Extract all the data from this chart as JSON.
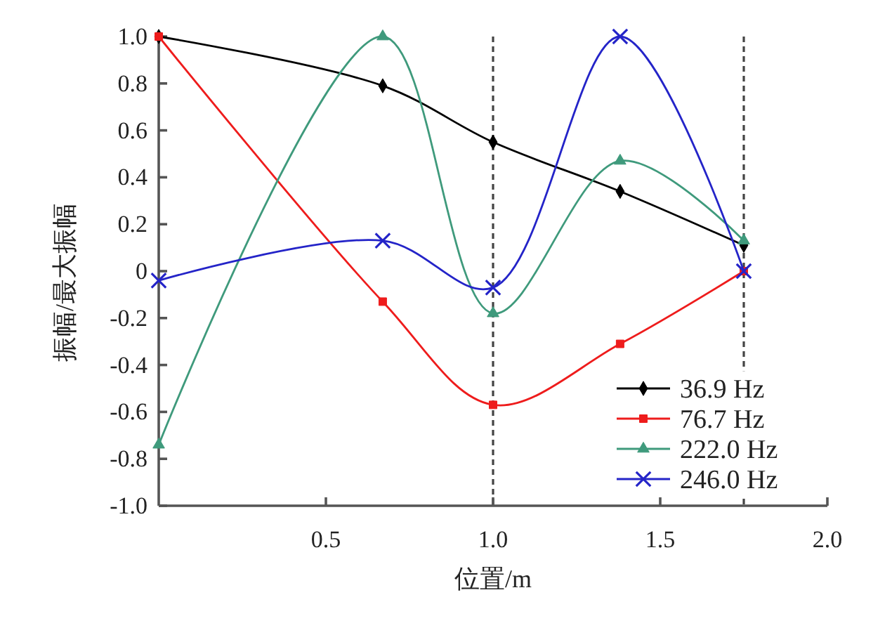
{
  "chart_data": {
    "type": "line",
    "xlabel": "位置/m",
    "ylabel": "振幅/最大振幅",
    "x": [
      0,
      0.67,
      1.0,
      1.38,
      1.75
    ],
    "series": [
      {
        "name": "36.9 Hz",
        "color": "#000000",
        "marker": "diamond",
        "values": [
          1.0,
          0.79,
          0.55,
          0.34,
          0.11
        ]
      },
      {
        "name": "76.7 Hz",
        "color": "#ee1c1c",
        "marker": "square",
        "values": [
          1.0,
          -0.13,
          -0.57,
          -0.31,
          0.0
        ]
      },
      {
        "name": "222.0 Hz",
        "color": "#3f9a7c",
        "marker": "triangle",
        "values": [
          -0.74,
          1.0,
          -0.18,
          0.47,
          0.13
        ]
      },
      {
        "name": "246.0 Hz",
        "color": "#2424c8",
        "marker": "cross",
        "values": [
          -0.04,
          0.13,
          -0.07,
          1.0,
          0.0
        ]
      }
    ],
    "xlim": [
      0,
      2.0
    ],
    "ylim": [
      -1.0,
      1.0
    ],
    "xticks": [
      0.5,
      {
        "value": 1.0,
        "label": "1.0"
      },
      1.5,
      {
        "value": 2.0,
        "label": "2.0"
      }
    ],
    "yticks": [
      {
        "value": 1.0,
        "label": "1.0"
      },
      0.8,
      0.6,
      0.4,
      0.2,
      0,
      -0.2,
      -0.4,
      -0.6,
      -0.8,
      {
        "value": -1.0,
        "label": "-1.0"
      }
    ],
    "ref_lines": [
      {
        "axis": "x",
        "value": 1.0,
        "color": "#444444",
        "line_style": "dashed"
      },
      {
        "axis": "x",
        "value": 1.75,
        "color": "#444444",
        "line_style": "dashed"
      }
    ],
    "legend": "bottom right"
  }
}
